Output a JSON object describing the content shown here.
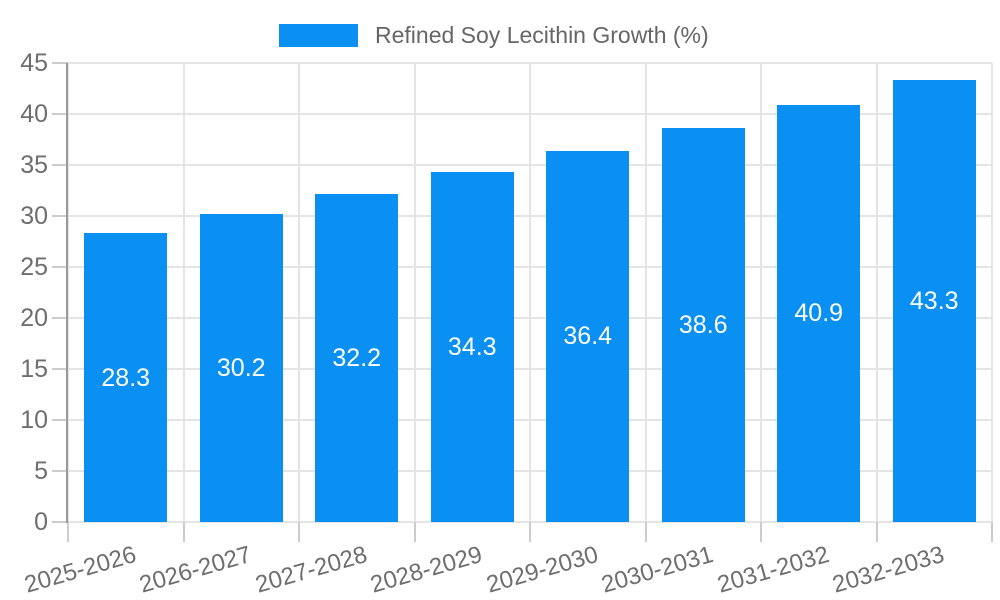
{
  "chart_data": {
    "type": "bar",
    "title": "",
    "legend": "Refined Soy Lecithin Growth (%)",
    "legend_position": "top-center",
    "categories": [
      "2025-2026",
      "2026-2027",
      "2027-2028",
      "2028-2029",
      "2029-2030",
      "2030-2031",
      "2031-2032",
      "2032-2033"
    ],
    "values": [
      28.3,
      30.2,
      32.2,
      34.3,
      36.4,
      38.6,
      40.9,
      43.3
    ],
    "value_labels": [
      "28.3",
      "30.2",
      "32.2",
      "34.3",
      "36.4",
      "38.6",
      "40.9",
      "43.3"
    ],
    "xlabel": "",
    "ylabel": "",
    "ylim": [
      0,
      45
    ],
    "ytick_step": 5,
    "y_ticks": [
      0,
      5,
      10,
      15,
      20,
      25,
      30,
      35,
      40,
      45
    ],
    "grid": true,
    "x_label_rotation_deg": -16,
    "colors": {
      "bar": "#0A8FF2",
      "value_label": "#FFFFFF",
      "axis_text": "#6E6E6E",
      "legend_text": "#666666",
      "grid_line": "#E4E4E4",
      "tick_line": "#CCCCCC",
      "axis_line": "#999999",
      "background": "#FFFFFF"
    }
  }
}
